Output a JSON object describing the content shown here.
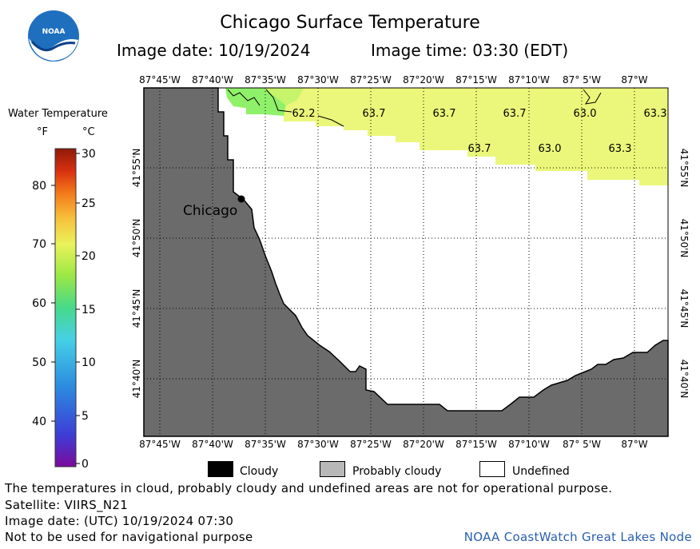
{
  "header": {
    "title": "Chicago Surface Temperature",
    "image_date": "Image date: 10/19/2024",
    "image_time": "Image time: 03:30 (EDT)"
  },
  "logo": {
    "text": "NOAA"
  },
  "colorbar": {
    "title": "Water Temperature",
    "unit_f": "°F",
    "unit_c": "°C",
    "f_ticks": [
      "80",
      "70",
      "60",
      "50",
      "40"
    ],
    "c_ticks": [
      "30",
      "25",
      "20",
      "15",
      "10",
      "5",
      "0"
    ],
    "colors": [
      "#7b0b9c",
      "#3d3dd6",
      "#2b8be0",
      "#46d0e6",
      "#47d98a",
      "#9be845",
      "#eaf25a",
      "#f7c13b",
      "#f47a1a",
      "#d83010",
      "#8f1a06"
    ]
  },
  "map": {
    "lon_labels": [
      "87°45'W",
      "87°40'W",
      "87°35'W",
      "87°30'W",
      "87°25'W",
      "87°20'W",
      "87°15'W",
      "87°10'W",
      "87° 5'W",
      "87°W"
    ],
    "lat_labels": [
      "41°55'N",
      "41°50'N",
      "41°45'N",
      "41°40'N"
    ],
    "city_label": "Chicago",
    "temps": [
      {
        "value": "62.2"
      },
      {
        "value": "63.7"
      },
      {
        "value": "63.7"
      },
      {
        "value": "63.7"
      },
      {
        "value": "63.0"
      },
      {
        "value": "63.3"
      },
      {
        "value": "63.7"
      },
      {
        "value": "63.0"
      },
      {
        "value": "63.3"
      }
    ],
    "land_color": "#6b6b6b",
    "water_warm_color": "#eaf77a",
    "water_cool_color": "#8ff06a"
  },
  "legend": {
    "items": [
      {
        "label": "Cloudy",
        "color": "#000000"
      },
      {
        "label": "Probably cloudy",
        "color": "#b8b8b8"
      },
      {
        "label": "Undefined",
        "color": "#ffffff"
      }
    ]
  },
  "footer": {
    "disclaimer": "The temperatures in cloud, probably cloudy and undefined areas are not for operational purpose.",
    "satellite": "Satellite: VIIRS_N21",
    "utc_date": "Image date: (UTC) 10/19/2024  07:30",
    "nav_warning": "Not to be used for navigational purpose",
    "credit": "NOAA CoastWatch Great Lakes Node"
  }
}
